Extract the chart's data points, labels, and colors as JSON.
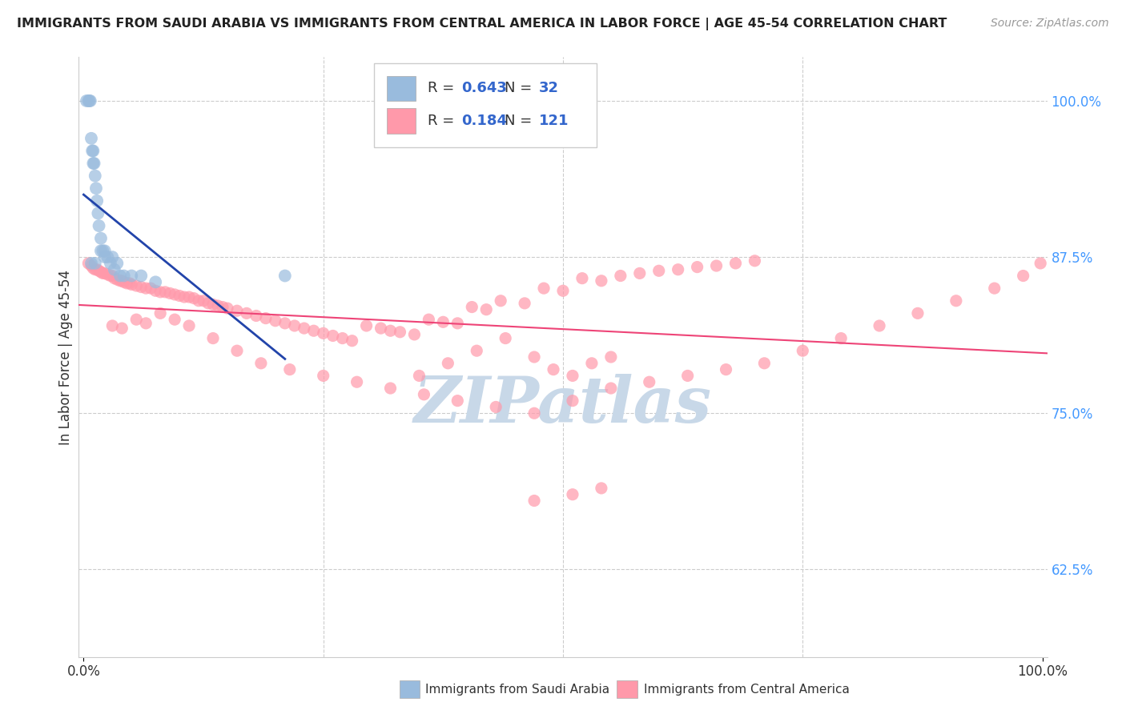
{
  "title": "IMMIGRANTS FROM SAUDI ARABIA VS IMMIGRANTS FROM CENTRAL AMERICA IN LABOR FORCE | AGE 45-54 CORRELATION CHART",
  "source": "Source: ZipAtlas.com",
  "ylabel": "In Labor Force | Age 45-54",
  "legend_label1": "Immigrants from Saudi Arabia",
  "legend_label2": "Immigrants from Central America",
  "R1": "0.643",
  "N1": "32",
  "R2": "0.184",
  "N2": "121",
  "blue_color": "#99BBDD",
  "pink_color": "#FF99AA",
  "blue_line_color": "#2244AA",
  "pink_line_color": "#EE4477",
  "watermark": "ZIPatlas",
  "watermark_color": "#C8D8E8",
  "background_color": "#FFFFFF",
  "grid_color": "#CCCCCC",
  "y_min": 0.555,
  "y_max": 1.035,
  "x_min": -0.005,
  "x_max": 1.005,
  "blue_x": [
    0.003,
    0.005,
    0.006,
    0.007,
    0.008,
    0.009,
    0.01,
    0.01,
    0.011,
    0.012,
    0.013,
    0.014,
    0.015,
    0.016,
    0.018,
    0.02,
    0.022,
    0.025,
    0.028,
    0.032,
    0.038,
    0.042,
    0.05,
    0.06,
    0.075,
    0.03,
    0.035,
    0.018,
    0.022,
    0.012,
    0.008,
    0.21
  ],
  "blue_y": [
    1.0,
    1.0,
    1.0,
    1.0,
    0.97,
    0.96,
    0.96,
    0.95,
    0.95,
    0.94,
    0.93,
    0.92,
    0.91,
    0.9,
    0.89,
    0.88,
    0.88,
    0.875,
    0.87,
    0.865,
    0.86,
    0.86,
    0.86,
    0.86,
    0.855,
    0.875,
    0.87,
    0.88,
    0.875,
    0.87,
    0.87,
    0.86
  ],
  "pink_x": [
    0.005,
    0.008,
    0.01,
    0.012,
    0.014,
    0.016,
    0.018,
    0.02,
    0.022,
    0.025,
    0.028,
    0.03,
    0.032,
    0.035,
    0.038,
    0.04,
    0.042,
    0.045,
    0.048,
    0.05,
    0.055,
    0.06,
    0.065,
    0.07,
    0.075,
    0.08,
    0.085,
    0.09,
    0.095,
    0.1,
    0.105,
    0.11,
    0.115,
    0.12,
    0.125,
    0.13,
    0.135,
    0.14,
    0.145,
    0.15,
    0.16,
    0.17,
    0.18,
    0.19,
    0.2,
    0.21,
    0.22,
    0.23,
    0.24,
    0.25,
    0.26,
    0.27,
    0.28,
    0.295,
    0.31,
    0.32,
    0.33,
    0.345,
    0.36,
    0.375,
    0.39,
    0.405,
    0.42,
    0.435,
    0.46,
    0.48,
    0.5,
    0.52,
    0.54,
    0.56,
    0.58,
    0.6,
    0.62,
    0.64,
    0.66,
    0.68,
    0.7,
    0.35,
    0.38,
    0.41,
    0.44,
    0.47,
    0.49,
    0.51,
    0.53,
    0.55,
    0.03,
    0.04,
    0.055,
    0.065,
    0.08,
    0.095,
    0.11,
    0.135,
    0.16,
    0.185,
    0.215,
    0.25,
    0.285,
    0.32,
    0.355,
    0.39,
    0.43,
    0.47,
    0.51,
    0.55,
    0.59,
    0.63,
    0.67,
    0.71,
    0.75,
    0.79,
    0.83,
    0.87,
    0.91,
    0.95,
    0.98,
    0.998,
    0.47,
    0.51,
    0.54
  ],
  "pink_y": [
    0.87,
    0.868,
    0.866,
    0.865,
    0.865,
    0.864,
    0.863,
    0.862,
    0.862,
    0.861,
    0.86,
    0.86,
    0.858,
    0.857,
    0.856,
    0.856,
    0.855,
    0.854,
    0.854,
    0.853,
    0.852,
    0.851,
    0.85,
    0.85,
    0.848,
    0.847,
    0.847,
    0.846,
    0.845,
    0.844,
    0.843,
    0.843,
    0.842,
    0.84,
    0.84,
    0.838,
    0.837,
    0.836,
    0.835,
    0.834,
    0.832,
    0.83,
    0.828,
    0.826,
    0.824,
    0.822,
    0.82,
    0.818,
    0.816,
    0.814,
    0.812,
    0.81,
    0.808,
    0.82,
    0.818,
    0.816,
    0.815,
    0.813,
    0.825,
    0.823,
    0.822,
    0.835,
    0.833,
    0.84,
    0.838,
    0.85,
    0.848,
    0.858,
    0.856,
    0.86,
    0.862,
    0.864,
    0.865,
    0.867,
    0.868,
    0.87,
    0.872,
    0.78,
    0.79,
    0.8,
    0.81,
    0.795,
    0.785,
    0.78,
    0.79,
    0.795,
    0.82,
    0.818,
    0.825,
    0.822,
    0.83,
    0.825,
    0.82,
    0.81,
    0.8,
    0.79,
    0.785,
    0.78,
    0.775,
    0.77,
    0.765,
    0.76,
    0.755,
    0.75,
    0.76,
    0.77,
    0.775,
    0.78,
    0.785,
    0.79,
    0.8,
    0.81,
    0.82,
    0.83,
    0.84,
    0.85,
    0.86,
    0.87,
    0.68,
    0.685,
    0.69
  ]
}
